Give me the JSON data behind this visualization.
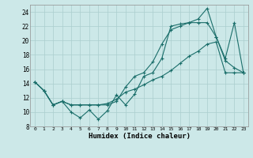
{
  "xlabel": "Humidex (Indice chaleur)",
  "bg_color": "#cce8e8",
  "line_color": "#1a6e6a",
  "grid_color": "#aacece",
  "xlim": [
    -0.5,
    23.5
  ],
  "ylim": [
    8,
    25
  ],
  "xticks": [
    0,
    1,
    2,
    3,
    4,
    5,
    6,
    7,
    8,
    9,
    10,
    11,
    12,
    13,
    14,
    15,
    16,
    17,
    18,
    19,
    20,
    21,
    22,
    23
  ],
  "yticks": [
    8,
    10,
    12,
    14,
    16,
    18,
    20,
    22,
    24
  ],
  "line1_x": [
    0,
    1,
    2,
    3,
    4,
    5,
    6,
    7,
    8,
    9,
    10,
    11,
    12,
    13,
    14,
    15,
    16,
    17,
    18,
    19,
    20,
    21,
    22,
    23
  ],
  "line1_y": [
    14.2,
    13.0,
    11.0,
    11.5,
    10.0,
    9.2,
    10.3,
    9.0,
    10.2,
    12.4,
    11.0,
    12.5,
    15.0,
    15.5,
    17.5,
    22.0,
    22.3,
    22.5,
    23.0,
    24.5,
    20.5,
    17.2,
    16.2,
    15.5
  ],
  "line2_x": [
    0,
    1,
    2,
    3,
    4,
    5,
    6,
    7,
    8,
    9,
    10,
    11,
    12,
    13,
    14,
    15,
    16,
    17,
    18,
    19,
    20,
    21,
    22,
    23
  ],
  "line2_y": [
    14.2,
    13.0,
    11.0,
    11.5,
    11.0,
    11.0,
    11.0,
    11.0,
    11.0,
    11.5,
    13.5,
    15.0,
    15.5,
    17.0,
    19.5,
    21.5,
    22.0,
    22.5,
    22.5,
    22.5,
    20.5,
    17.5,
    22.5,
    15.5
  ],
  "line3_x": [
    0,
    1,
    2,
    3,
    4,
    5,
    6,
    7,
    8,
    9,
    10,
    11,
    12,
    13,
    14,
    15,
    16,
    17,
    18,
    19,
    20,
    21,
    22,
    23
  ],
  "line3_y": [
    14.2,
    13.0,
    11.0,
    11.5,
    11.0,
    11.0,
    11.0,
    11.0,
    11.2,
    11.8,
    12.8,
    13.2,
    13.8,
    14.5,
    15.0,
    15.8,
    16.8,
    17.8,
    18.5,
    19.5,
    19.8,
    15.5,
    15.5,
    15.5
  ]
}
